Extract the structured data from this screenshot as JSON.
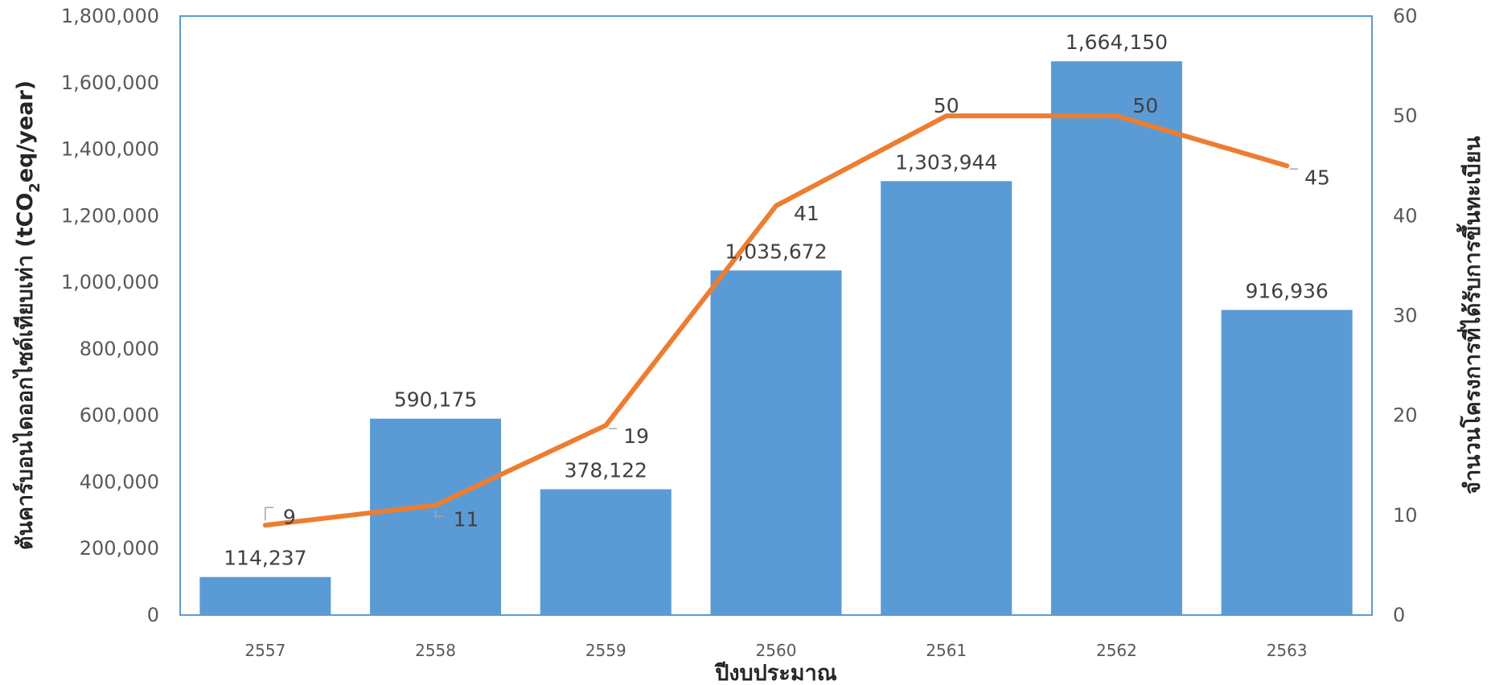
{
  "chart_data": {
    "type": "bar",
    "title": "",
    "categories": [
      "2557",
      "2558",
      "2559",
      "2560",
      "2561",
      "2562",
      "2563"
    ],
    "xlabel": "ปีงบประมาณ",
    "ylabel": "ตันคาร์บอนไดออกไซด์เทียบเท่า (tCO2eq/year)",
    "ylabel_prefix": "ตันคาร์บอนไดออกไซด์เทียบเท่า (tCO",
    "ylabel_sub": "2",
    "ylabel_suffix": "eq/year)",
    "y2label": "จำนวนโครงการที่ได้รับการขึ้นทะเบียน",
    "ylim": [
      0,
      1800000
    ],
    "y2lim": [
      0,
      60
    ],
    "yticks": [
      "0",
      "200,000",
      "400,000",
      "600,000",
      "800,000",
      "1,000,000",
      "1,200,000",
      "1,400,000",
      "1,600,000",
      "1,800,000"
    ],
    "y2ticks": [
      "0",
      "10",
      "20",
      "30",
      "40",
      "50",
      "60"
    ],
    "legend": "none",
    "grid": false,
    "colors": {
      "bar": "#5B9BD5",
      "line": "#ED7D31",
      "frame": "#5B9BD5"
    },
    "series": [
      {
        "type": "bar",
        "axis": "left",
        "values": [
          114237,
          590175,
          378122,
          1035672,
          1303944,
          1664150,
          916936
        ],
        "labels": [
          "114,237",
          "590,175",
          "378,122",
          "1,035,672",
          "1,303,944",
          "1,664,150",
          "916,936"
        ]
      },
      {
        "type": "line",
        "axis": "right",
        "values": [
          9,
          11,
          19,
          41,
          50,
          50,
          45
        ],
        "labels": [
          "9",
          "11",
          "19",
          "41",
          "50",
          "50",
          "45"
        ]
      }
    ]
  }
}
